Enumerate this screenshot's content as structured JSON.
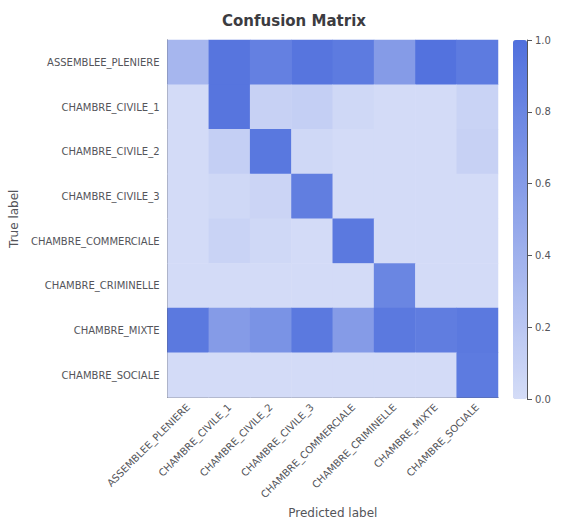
{
  "chart_data": {
    "type": "heatmap",
    "title": "Confusion Matrix",
    "xlabel": "Predicted label",
    "ylabel": "True label",
    "categories": [
      "ASSEMBLEE_PLENIERE",
      "CHAMBRE_CIVILE_1",
      "CHAMBRE_CIVILE_2",
      "CHAMBRE_CIVILE_3",
      "CHAMBRE_COMMERCIALE",
      "CHAMBRE_CRIMINELLE",
      "CHAMBRE_MIXTE",
      "CHAMBRE_SOCIALE"
    ],
    "values": [
      [
        0.35,
        0.95,
        0.85,
        0.95,
        0.9,
        0.6,
        0.98,
        0.9
      ],
      [
        0.01,
        0.95,
        0.1,
        0.12,
        0.04,
        0.01,
        0.01,
        0.08
      ],
      [
        0.01,
        0.12,
        0.93,
        0.04,
        0.01,
        0.01,
        0.01,
        0.1
      ],
      [
        0.01,
        0.04,
        0.07,
        0.87,
        0.01,
        0.01,
        0.01,
        0.01
      ],
      [
        0.01,
        0.08,
        0.04,
        0.01,
        0.92,
        0.01,
        0.01,
        0.01
      ],
      [
        0.01,
        0.01,
        0.01,
        0.01,
        0.01,
        0.8,
        0.01,
        0.01
      ],
      [
        0.92,
        0.6,
        0.68,
        0.92,
        0.6,
        0.92,
        0.88,
        0.92
      ],
      [
        0.01,
        0.01,
        0.01,
        0.01,
        0.01,
        0.01,
        0.01,
        0.9
      ]
    ],
    "color_range": [
      0.0,
      1.0
    ],
    "color_ticks": [
      {
        "value": 0,
        "label": "0.0"
      },
      0.2,
      0.4,
      0.6,
      0.8,
      {
        "value": 1,
        "label": "1.0"
      }
    ],
    "grid": false
  }
}
